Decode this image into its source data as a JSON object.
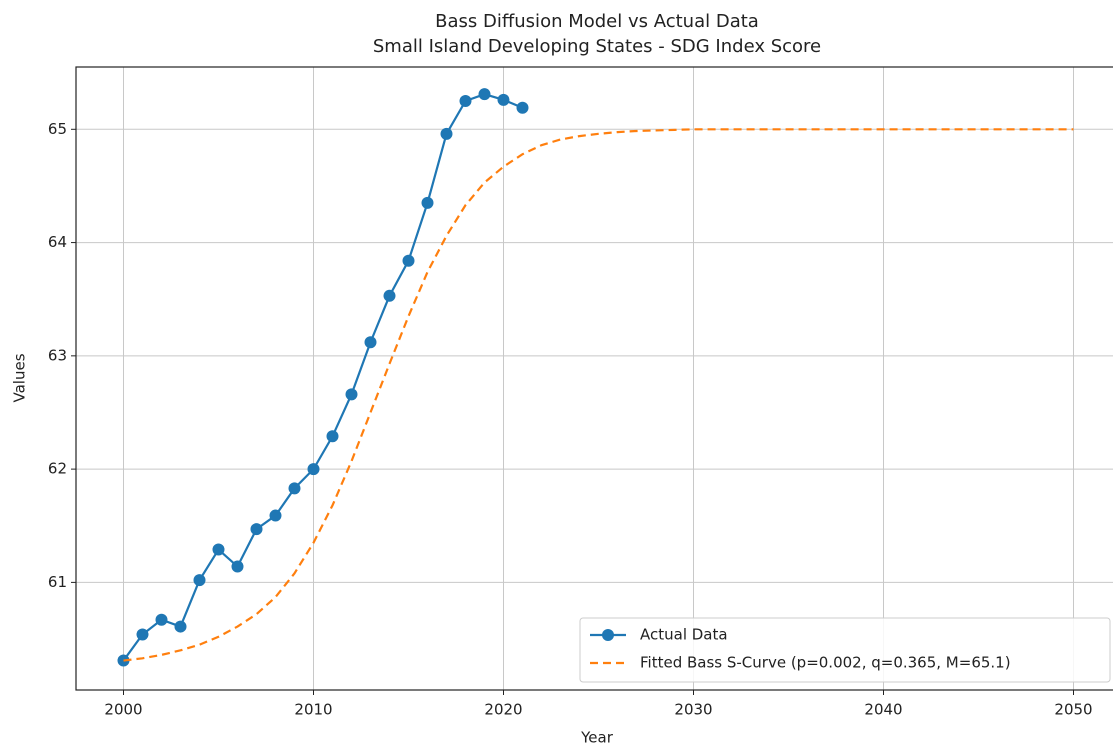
{
  "chart_data": {
    "type": "line",
    "title": "Bass Diffusion Model vs Actual Data",
    "subtitle": "Small Island Developing States - SDG Index Score",
    "x_label": "Year",
    "y_label": "Values",
    "xlim": [
      1997.5,
      2052.5
    ],
    "xticks": [
      2000,
      2010,
      2020,
      2030,
      2040,
      2050
    ],
    "ylim": [
      60.05,
      65.55
    ],
    "yticks": [
      61,
      62,
      63,
      64,
      65
    ],
    "grid": true,
    "legend": "lower right",
    "series": [
      {
        "name": "Actual Data",
        "color": "#1f77b4",
        "style": "solid",
        "marker": "o",
        "x": [
          2000,
          2001,
          2002,
          2003,
          2004,
          2005,
          2006,
          2007,
          2008,
          2009,
          2010,
          2011,
          2012,
          2013,
          2014,
          2015,
          2016,
          2017,
          2018,
          2019,
          2020,
          2021
        ],
        "values": [
          60.31,
          60.54,
          60.67,
          60.61,
          61.02,
          61.29,
          61.14,
          61.47,
          61.59,
          61.83,
          62.0,
          62.29,
          62.66,
          63.12,
          63.53,
          63.84,
          64.35,
          64.96,
          65.25,
          65.31,
          65.26,
          65.19
        ]
      },
      {
        "name": "Fitted Bass S-Curve (p=0.002, q=0.365, M=65.1)",
        "color": "#ff7f0e",
        "style": "dashed",
        "x": [
          2000,
          2001,
          2002,
          2003,
          2004,
          2005,
          2006,
          2007,
          2008,
          2009,
          2010,
          2011,
          2012,
          2013,
          2014,
          2015,
          2016,
          2017,
          2018,
          2019,
          2020,
          2021,
          2022,
          2023,
          2024,
          2025,
          2026,
          2027,
          2028,
          2029,
          2030,
          2035,
          2040,
          2045,
          2050
        ],
        "values": [
          60.31,
          60.33,
          60.36,
          60.4,
          60.45,
          60.52,
          60.61,
          60.72,
          60.87,
          61.08,
          61.35,
          61.68,
          62.07,
          62.5,
          62.93,
          63.35,
          63.74,
          64.06,
          64.33,
          64.53,
          64.67,
          64.78,
          64.86,
          64.91,
          64.94,
          64.96,
          64.975,
          64.985,
          64.99,
          64.995,
          65.0,
          65.0,
          65.0,
          65.0,
          65.0
        ]
      }
    ]
  }
}
